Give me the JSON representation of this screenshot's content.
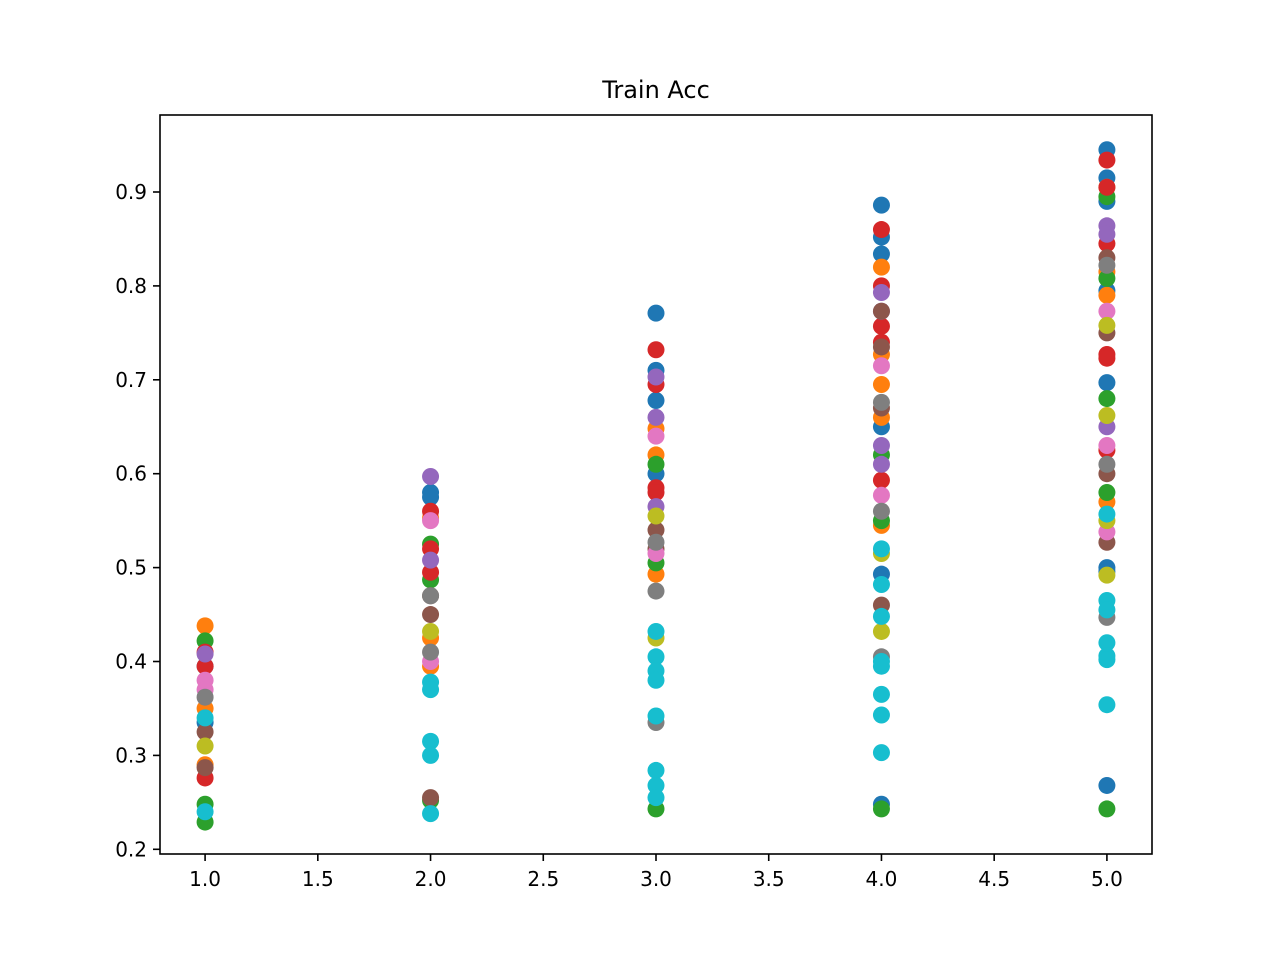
{
  "chart_data": {
    "type": "scatter",
    "title": "Train Acc",
    "xlabel": "",
    "ylabel": "",
    "xlim": [
      0.8,
      5.2
    ],
    "ylim": [
      0.195,
      0.982
    ],
    "x_ticks": [
      1.0,
      1.5,
      2.0,
      2.5,
      3.0,
      3.5,
      4.0,
      4.5,
      5.0
    ],
    "x_tick_labels": [
      "1.0",
      "1.5",
      "2.0",
      "2.5",
      "3.0",
      "3.5",
      "4.0",
      "4.5",
      "5.0"
    ],
    "y_ticks": [
      0.2,
      0.3,
      0.4,
      0.5,
      0.6,
      0.7,
      0.8,
      0.9
    ],
    "y_tick_labels": [
      "0.2",
      "0.3",
      "0.4",
      "0.5",
      "0.6",
      "0.7",
      "0.8",
      "0.9"
    ],
    "grid": false,
    "legend": "none",
    "colors": [
      "#1f77b4",
      "#ff7f0e",
      "#2ca02c",
      "#d62728",
      "#9467bd",
      "#8c564b",
      "#e377c2",
      "#7f7f7f",
      "#bcbd22",
      "#17becf"
    ],
    "series": [
      {
        "color": "#1f77b4",
        "points": [
          [
            1.0,
            0.395
          ],
          [
            1.0,
            0.335
          ],
          [
            2.0,
            0.58
          ],
          [
            2.0,
            0.575
          ],
          [
            3.0,
            0.771
          ],
          [
            3.0,
            0.71
          ],
          [
            3.0,
            0.678
          ],
          [
            3.0,
            0.6
          ],
          [
            4.0,
            0.886
          ],
          [
            4.0,
            0.852
          ],
          [
            4.0,
            0.834
          ],
          [
            4.0,
            0.65
          ],
          [
            4.0,
            0.493
          ],
          [
            4.0,
            0.248
          ],
          [
            5.0,
            0.945
          ],
          [
            5.0,
            0.915
          ],
          [
            5.0,
            0.89
          ],
          [
            5.0,
            0.795
          ],
          [
            5.0,
            0.697
          ],
          [
            5.0,
            0.5
          ],
          [
            5.0,
            0.496
          ],
          [
            5.0,
            0.268
          ]
        ]
      },
      {
        "color": "#ff7f0e",
        "points": [
          [
            1.0,
            0.438
          ],
          [
            1.0,
            0.35
          ],
          [
            1.0,
            0.29
          ],
          [
            2.0,
            0.553
          ],
          [
            2.0,
            0.425
          ],
          [
            2.0,
            0.395
          ],
          [
            3.0,
            0.648
          ],
          [
            3.0,
            0.62
          ],
          [
            3.0,
            0.493
          ],
          [
            4.0,
            0.82
          ],
          [
            4.0,
            0.727
          ],
          [
            4.0,
            0.695
          ],
          [
            4.0,
            0.66
          ],
          [
            4.0,
            0.545
          ],
          [
            5.0,
            0.905
          ],
          [
            5.0,
            0.815
          ],
          [
            5.0,
            0.79
          ],
          [
            5.0,
            0.57
          ]
        ]
      },
      {
        "color": "#2ca02c",
        "points": [
          [
            1.0,
            0.422
          ],
          [
            1.0,
            0.248
          ],
          [
            1.0,
            0.229
          ],
          [
            2.0,
            0.525
          ],
          [
            2.0,
            0.487
          ],
          [
            2.0,
            0.252
          ],
          [
            3.0,
            0.61
          ],
          [
            3.0,
            0.505
          ],
          [
            3.0,
            0.243
          ],
          [
            4.0,
            0.62
          ],
          [
            4.0,
            0.55
          ],
          [
            4.0,
            0.243
          ],
          [
            5.0,
            0.895
          ],
          [
            5.0,
            0.808
          ],
          [
            5.0,
            0.68
          ],
          [
            5.0,
            0.58
          ],
          [
            5.0,
            0.243
          ]
        ]
      },
      {
        "color": "#d62728",
        "points": [
          [
            1.0,
            0.41
          ],
          [
            1.0,
            0.395
          ],
          [
            1.0,
            0.276
          ],
          [
            2.0,
            0.56
          ],
          [
            2.0,
            0.52
          ],
          [
            2.0,
            0.495
          ],
          [
            3.0,
            0.732
          ],
          [
            3.0,
            0.695
          ],
          [
            3.0,
            0.585
          ],
          [
            3.0,
            0.58
          ],
          [
            4.0,
            0.86
          ],
          [
            4.0,
            0.8
          ],
          [
            4.0,
            0.757
          ],
          [
            4.0,
            0.74
          ],
          [
            4.0,
            0.593
          ],
          [
            5.0,
            0.934
          ],
          [
            5.0,
            0.905
          ],
          [
            5.0,
            0.845
          ],
          [
            5.0,
            0.727
          ],
          [
            5.0,
            0.723
          ],
          [
            5.0,
            0.625
          ]
        ]
      },
      {
        "color": "#9467bd",
        "points": [
          [
            1.0,
            0.408
          ],
          [
            2.0,
            0.597
          ],
          [
            2.0,
            0.508
          ],
          [
            3.0,
            0.703
          ],
          [
            3.0,
            0.66
          ],
          [
            3.0,
            0.565
          ],
          [
            4.0,
            0.793
          ],
          [
            4.0,
            0.773
          ],
          [
            4.0,
            0.63
          ],
          [
            4.0,
            0.61
          ],
          [
            5.0,
            0.864
          ],
          [
            5.0,
            0.855
          ],
          [
            5.0,
            0.65
          ]
        ]
      },
      {
        "color": "#8c564b",
        "points": [
          [
            1.0,
            0.325
          ],
          [
            1.0,
            0.287
          ],
          [
            2.0,
            0.47
          ],
          [
            2.0,
            0.45
          ],
          [
            2.0,
            0.255
          ],
          [
            3.0,
            0.54
          ],
          [
            3.0,
            0.52
          ],
          [
            4.0,
            0.773
          ],
          [
            4.0,
            0.735
          ],
          [
            4.0,
            0.67
          ],
          [
            4.0,
            0.46
          ],
          [
            5.0,
            0.83
          ],
          [
            5.0,
            0.75
          ],
          [
            5.0,
            0.6
          ],
          [
            5.0,
            0.527
          ]
        ]
      },
      {
        "color": "#e377c2",
        "points": [
          [
            1.0,
            0.38
          ],
          [
            1.0,
            0.37
          ],
          [
            2.0,
            0.55
          ],
          [
            2.0,
            0.4
          ],
          [
            3.0,
            0.64
          ],
          [
            3.0,
            0.515
          ],
          [
            4.0,
            0.715
          ],
          [
            4.0,
            0.577
          ],
          [
            5.0,
            0.773
          ],
          [
            5.0,
            0.63
          ],
          [
            5.0,
            0.538
          ]
        ]
      },
      {
        "color": "#7f7f7f",
        "points": [
          [
            1.0,
            0.362
          ],
          [
            2.0,
            0.47
          ],
          [
            2.0,
            0.41
          ],
          [
            3.0,
            0.527
          ],
          [
            3.0,
            0.475
          ],
          [
            3.0,
            0.335
          ],
          [
            4.0,
            0.676
          ],
          [
            4.0,
            0.56
          ],
          [
            4.0,
            0.405
          ],
          [
            5.0,
            0.822
          ],
          [
            5.0,
            0.61
          ],
          [
            5.0,
            0.447
          ]
        ]
      },
      {
        "color": "#bcbd22",
        "points": [
          [
            1.0,
            0.31
          ],
          [
            2.0,
            0.432
          ],
          [
            3.0,
            0.555
          ],
          [
            3.0,
            0.425
          ],
          [
            4.0,
            0.515
          ],
          [
            4.0,
            0.432
          ],
          [
            5.0,
            0.758
          ],
          [
            5.0,
            0.662
          ],
          [
            5.0,
            0.55
          ],
          [
            5.0,
            0.492
          ]
        ]
      },
      {
        "color": "#17becf",
        "points": [
          [
            1.0,
            0.34
          ],
          [
            1.0,
            0.24
          ],
          [
            2.0,
            0.378
          ],
          [
            2.0,
            0.37
          ],
          [
            2.0,
            0.315
          ],
          [
            2.0,
            0.3
          ],
          [
            2.0,
            0.238
          ],
          [
            3.0,
            0.432
          ],
          [
            3.0,
            0.405
          ],
          [
            3.0,
            0.39
          ],
          [
            3.0,
            0.38
          ],
          [
            3.0,
            0.342
          ],
          [
            3.0,
            0.284
          ],
          [
            3.0,
            0.268
          ],
          [
            3.0,
            0.255
          ],
          [
            4.0,
            0.52
          ],
          [
            4.0,
            0.482
          ],
          [
            4.0,
            0.448
          ],
          [
            4.0,
            0.4
          ],
          [
            4.0,
            0.395
          ],
          [
            4.0,
            0.365
          ],
          [
            4.0,
            0.343
          ],
          [
            4.0,
            0.303
          ],
          [
            5.0,
            0.557
          ],
          [
            5.0,
            0.465
          ],
          [
            5.0,
            0.455
          ],
          [
            5.0,
            0.42
          ],
          [
            5.0,
            0.406
          ],
          [
            5.0,
            0.402
          ],
          [
            5.0,
            0.354
          ]
        ]
      }
    ]
  }
}
